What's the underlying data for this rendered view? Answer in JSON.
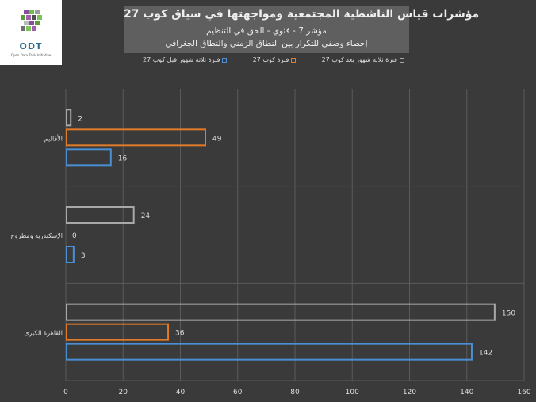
{
  "logo": {
    "name": "ODT",
    "tagline": "Open Data Tank Initiative"
  },
  "colors": {
    "before": "#4a8fd4",
    "during": "#e07b2a",
    "after": "#a8a8a8",
    "grid": "#5a5a5a",
    "text": "#dddddd",
    "background": "#3a3a3a"
  },
  "chart_data": {
    "type": "bar",
    "orientation": "horizontal",
    "title": "مؤشرات قياس الناشطية المجتمعية ومواجهتها في سياق كوب 27",
    "subtitle": "مؤشر 7 - فئوي - الحق في التنظيم",
    "subtitle2": "إحصاء وصفي للتكرار بين النطاق الزمني والنطاق الجغرافي",
    "categories": [
      "الأقاليم",
      "الإسكندرية ومطروح",
      "القاهرة الكبرى"
    ],
    "series": [
      {
        "name": "فترة ثلاثة شهور قبل كوب 27",
        "values": [
          16,
          3,
          142
        ]
      },
      {
        "name": "فترة كوب 27",
        "values": [
          49,
          0,
          36
        ]
      },
      {
        "name": "فترة ثلاثة شهور بعد كوب 27",
        "values": [
          2,
          24,
          150
        ]
      }
    ],
    "xlim": [
      0,
      160
    ],
    "xticks": [
      0,
      20,
      40,
      60,
      80,
      100,
      120,
      140,
      160
    ],
    "grid": true,
    "legend_position": "top"
  }
}
